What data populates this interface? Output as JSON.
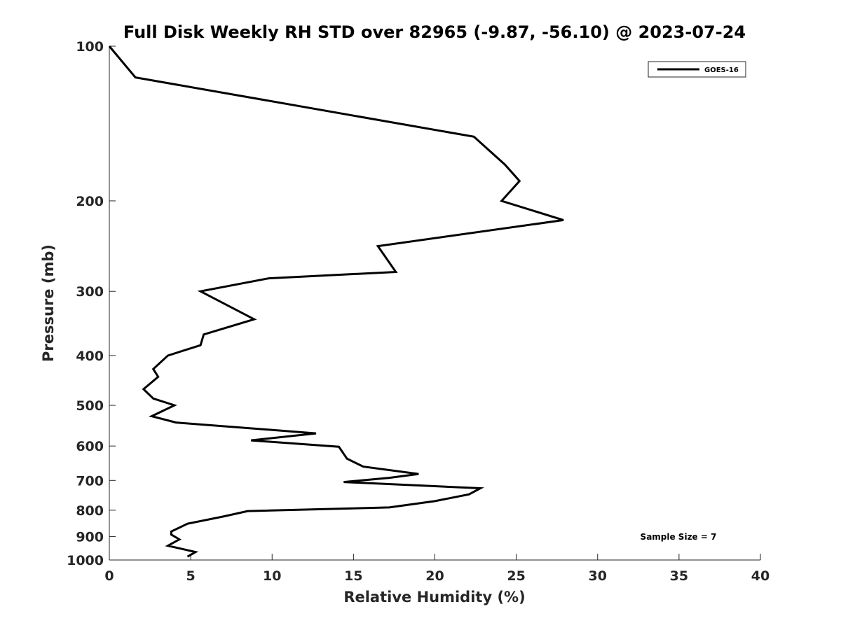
{
  "chart_data": {
    "type": "line",
    "title": "Full Disk Weekly RH STD over 82965 (-9.87, -56.10) @ 2023-07-24",
    "xlabel": "Relative Humidity (%)",
    "ylabel": "Pressure (mb)",
    "xlim": [
      0,
      40
    ],
    "ylim": [
      100,
      1000
    ],
    "y_scale": "log",
    "y_direction": "reversed",
    "grid": false,
    "legend_position": "top-right",
    "x_ticks": [
      0,
      5,
      10,
      15,
      20,
      25,
      30,
      35,
      40
    ],
    "x_tick_labels": [
      "0",
      "5",
      "10",
      "15",
      "20",
      "25",
      "30",
      "35",
      "40"
    ],
    "y_ticks": [
      100,
      200,
      300,
      400,
      500,
      600,
      700,
      800,
      900,
      1000
    ],
    "y_tick_labels": [
      "100",
      "200",
      "300",
      "400",
      "500",
      "600",
      "700",
      "800",
      "900",
      "1000"
    ],
    "annotation": "Sample Size = 7",
    "series": [
      {
        "name": "GOES-16",
        "color": "#000000",
        "x": [
          0,
          1.6,
          22.4,
          24.3,
          25.2,
          24.1,
          27.9,
          16.5,
          17.6,
          9.8,
          5.6,
          8.9,
          5.8,
          5.6,
          3.6,
          2.7,
          3.0,
          2.1,
          2.7,
          4.0,
          2.6,
          4.1,
          12.7,
          8.7,
          14.1,
          14.6,
          15.6,
          19.0,
          17.2,
          14.4,
          22.8,
          22.1,
          20.0,
          17.2,
          8.5,
          7.0,
          4.8,
          3.8,
          3.8,
          4.3,
          3.6,
          5.3,
          4.8
        ],
        "y": [
          100,
          115,
          150,
          170,
          183,
          200,
          218,
          245,
          275,
          283,
          300,
          340,
          364,
          382,
          400,
          425,
          440,
          465,
          485,
          500,
          525,
          540,
          567,
          585,
          602,
          635,
          658,
          680,
          692,
          705,
          725,
          745,
          768,
          790,
          803,
          823,
          850,
          880,
          892,
          912,
          938,
          965,
          985
        ]
      }
    ]
  }
}
